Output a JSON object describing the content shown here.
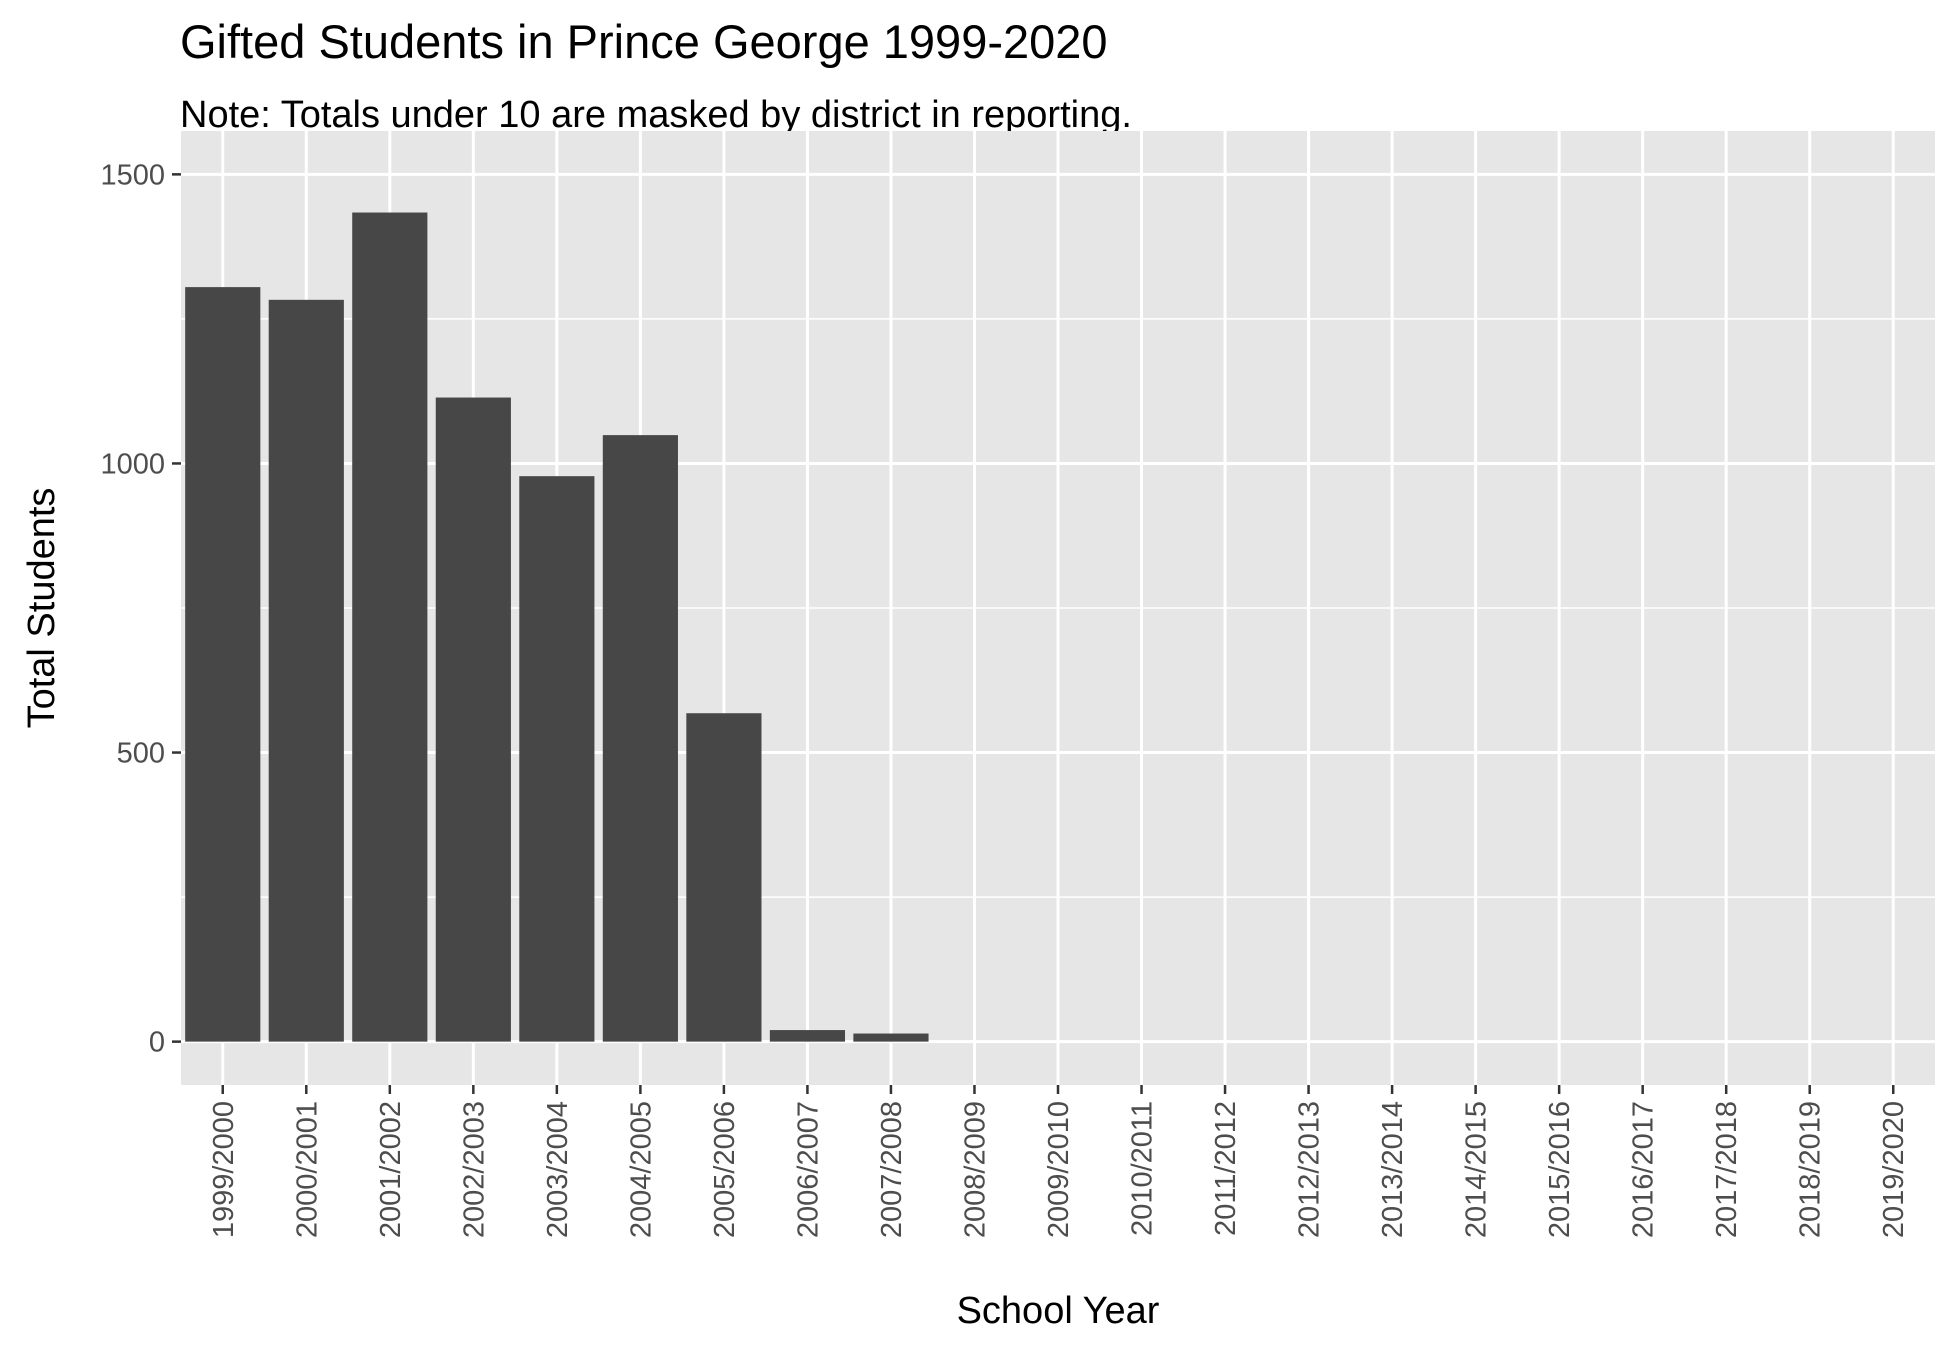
{
  "chart_data": {
    "type": "bar",
    "title": "Gifted Students in Prince George 1999-2020",
    "subtitle": "Note: Totals under 10 are masked by district in reporting.",
    "xlabel": "School Year",
    "ylabel": "Total Students",
    "categories": [
      "1999/2000",
      "2000/2001",
      "2001/2002",
      "2002/2003",
      "2003/2004",
      "2004/2005",
      "2005/2006",
      "2006/2007",
      "2007/2008",
      "2008/2009",
      "2009/2010",
      "2010/2011",
      "2011/2012",
      "2012/2013",
      "2013/2014",
      "2014/2015",
      "2015/2016",
      "2016/2017",
      "2017/2018",
      "2018/2019",
      "2019/2020"
    ],
    "values": [
      1305,
      1283,
      1434,
      1114,
      978,
      1049,
      568,
      20,
      14,
      0,
      0,
      0,
      0,
      0,
      0,
      0,
      0,
      0,
      0,
      0,
      0
    ],
    "yticks": [
      0,
      500,
      1000,
      1500
    ],
    "ylim": [
      -75,
      1500
    ],
    "grid": true,
    "colors": {
      "bar": "#474747",
      "panel": "#e6e6e6",
      "grid": "#ffffff",
      "tick_text": "#4d4d4d",
      "tick_mark": "#333333"
    }
  }
}
